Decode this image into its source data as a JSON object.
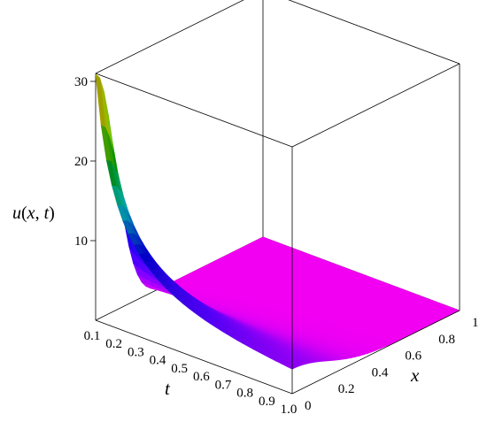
{
  "chart_data": {
    "type": "surface",
    "title": "",
    "zlabel": {
      "fn": "u",
      "args": [
        "x",
        "t"
      ]
    },
    "xlabel": "x",
    "tlabel": "t",
    "x_ticks": [
      "0",
      "0.2",
      "0.4",
      "0.6",
      "0.8",
      "1"
    ],
    "x_tick_values": [
      0,
      0.2,
      0.4,
      0.6,
      0.8,
      1
    ],
    "t_ticks": [
      "0.1",
      "0.2",
      "0.3",
      "0.4",
      "0.5",
      "0.6",
      "0.7",
      "0.8",
      "0.9",
      "1.0"
    ],
    "t_tick_values": [
      0.1,
      0.2,
      0.3,
      0.4,
      0.5,
      0.6,
      0.7,
      0.8,
      0.9,
      1.0
    ],
    "z_ticks": [
      "10",
      "20",
      "30"
    ],
    "z_tick_values": [
      10,
      20,
      30
    ],
    "xlim": [
      0,
      1
    ],
    "tlim": [
      0.1,
      1.0
    ],
    "zlim": [
      0,
      31
    ],
    "peak": {
      "x": 0,
      "t": 0.1,
      "u": 30.9
    },
    "surface_samples": [
      {
        "t": 0.1,
        "x": 0,
        "u": 30.9
      },
      {
        "t": 0.1,
        "x": 0.2,
        "u": 9.0
      },
      {
        "t": 0.1,
        "x": 0.4,
        "u": 0.8
      },
      {
        "t": 0.1,
        "x": 1,
        "u": 0.0
      },
      {
        "t": 0.2,
        "x": 0,
        "u": 19.8
      },
      {
        "t": 0.3,
        "x": 0,
        "u": 13.0
      },
      {
        "t": 0.5,
        "x": 0,
        "u": 7.0
      },
      {
        "t": 1.0,
        "x": 0,
        "u": 2.5
      },
      {
        "t": 1.0,
        "x": 1,
        "u": 0.0
      }
    ],
    "colormap": [
      "#ff00ff",
      "#5500ff",
      "#0000cc",
      "#00aaaa",
      "#008800",
      "#88bb00",
      "#bb8800"
    ]
  }
}
